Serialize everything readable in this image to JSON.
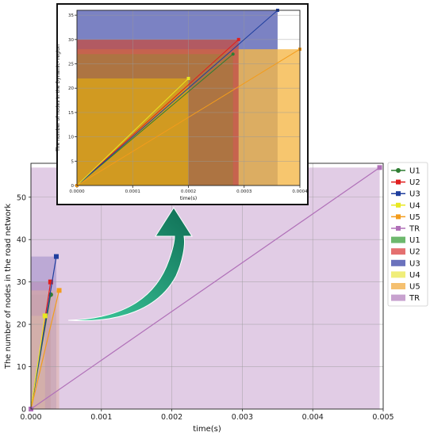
{
  "chart_data": [
    {
      "type": "line",
      "xlabel": "time(s)",
      "ylabel": "The number of nodes in the road network",
      "xlim": [
        0,
        0.005
      ],
      "ylim": [
        0,
        58
      ],
      "xticks": [
        "0.000",
        "0.001",
        "0.002",
        "0.003",
        "0.004",
        "0.005"
      ],
      "yticks": [
        "0",
        "10",
        "20",
        "30",
        "40",
        "50"
      ],
      "grid": true,
      "legend_position": "outside-right",
      "series": [
        {
          "name": "U1",
          "color": "#2e7d32",
          "marker": "circle",
          "x": [
            0,
            0.00028
          ],
          "y": [
            0,
            27
          ]
        },
        {
          "name": "U2",
          "color": "#e01e1e",
          "marker": "square",
          "x": [
            0,
            0.00028
          ],
          "y": [
            0,
            30
          ]
        },
        {
          "name": "U3",
          "color": "#1f3f9e",
          "marker": "square",
          "x": [
            0,
            0.00036
          ],
          "y": [
            0,
            36
          ]
        },
        {
          "name": "U4",
          "color": "#e8e822",
          "marker": "square",
          "x": [
            0,
            0.0002
          ],
          "y": [
            0,
            22
          ]
        },
        {
          "name": "U5",
          "color": "#f39c1c",
          "marker": "square",
          "x": [
            0,
            0.0004
          ],
          "y": [
            0,
            28
          ]
        },
        {
          "name": "TR",
          "color": "#b070b8",
          "marker": "square",
          "x": [
            0,
            0.00495
          ],
          "y": [
            0,
            57
          ]
        }
      ],
      "areas": [
        {
          "name": "U1",
          "color": "#6db86d",
          "x_end": 0.00028,
          "y_top": 27
        },
        {
          "name": "U2",
          "color": "#e47070",
          "x_end": 0.00028,
          "y_top": 30
        },
        {
          "name": "U3",
          "color": "#6b72bd",
          "x_end": 0.00036,
          "y_top": 36
        },
        {
          "name": "U4",
          "color": "#f0ee7a",
          "x_end": 0.0002,
          "y_top": 22
        },
        {
          "name": "U5",
          "color": "#f5c070",
          "x_end": 0.0004,
          "y_top": 28
        },
        {
          "name": "TR",
          "color": "#c8a2cf",
          "x_end": 0.00495,
          "y_top": 57
        }
      ],
      "legend": [
        "U1",
        "U2",
        "U3",
        "U4",
        "U5",
        "TR",
        "U1",
        "U2",
        "U3",
        "U4",
        "U5",
        "TR"
      ]
    },
    {
      "type": "line",
      "xlabel": "time(s)",
      "ylabel": "The number of nodes in the Dynamic- region",
      "xlim": [
        0,
        0.0004
      ],
      "ylim": [
        0,
        36
      ],
      "xticks": [
        "0.0000",
        "0.0001",
        "0.0002",
        "0.0003",
        "0.0004"
      ],
      "yticks": [
        "0",
        "5",
        "10",
        "15",
        "20",
        "25",
        "30",
        "35"
      ],
      "grid": true,
      "series": [
        {
          "name": "U1",
          "color": "#2e7d32",
          "x": [
            0,
            0.00028
          ],
          "y": [
            0,
            27
          ]
        },
        {
          "name": "U2",
          "color": "#e01e1e",
          "x": [
            0,
            0.00029
          ],
          "y": [
            0,
            30
          ]
        },
        {
          "name": "U3",
          "color": "#1f3f9e",
          "x": [
            0,
            0.00036
          ],
          "y": [
            0,
            36
          ]
        },
        {
          "name": "U4",
          "color": "#e8e822",
          "x": [
            0,
            0.0002
          ],
          "y": [
            0,
            22
          ]
        },
        {
          "name": "U5",
          "color": "#f39c1c",
          "x": [
            0,
            0.0004
          ],
          "y": [
            0,
            28
          ]
        }
      ]
    }
  ]
}
